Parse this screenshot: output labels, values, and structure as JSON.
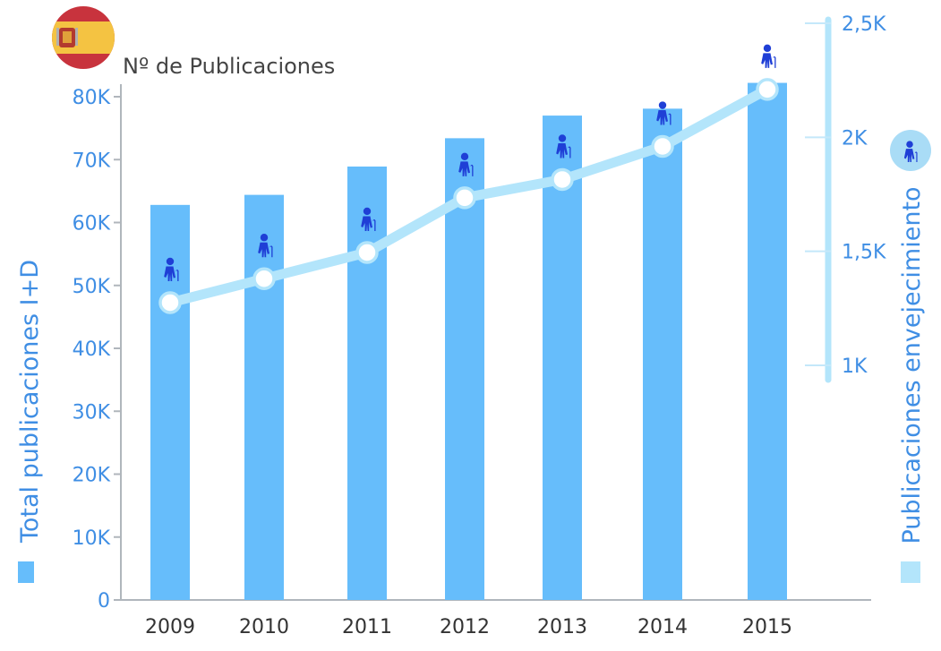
{
  "chart_data": {
    "type": "bar",
    "title": "Nº de Publicaciones",
    "categories": [
      "2009",
      "2010",
      "2011",
      "2012",
      "2013",
      "2014",
      "2015"
    ],
    "series": [
      {
        "name": "Total publicaciones I+D",
        "type": "bar",
        "axis": "left",
        "color": "#66bdfb",
        "values": [
          62800,
          64400,
          68900,
          73400,
          77000,
          78100,
          82200
        ]
      },
      {
        "name": "Publicaciones envejecimiento",
        "type": "line",
        "axis": "right",
        "color": "#b3e5fb",
        "values": [
          1275,
          1380,
          1495,
          1735,
          1815,
          1960,
          2210
        ]
      }
    ],
    "ylabel": "Total publicaciones I+D",
    "y2label": "Publicaciones envejecimiento",
    "ylim": [
      0,
      80000
    ],
    "y_ticks": [
      0,
      10000,
      20000,
      30000,
      40000,
      50000,
      60000,
      70000,
      80000
    ],
    "y_tick_labels": [
      "0",
      "10K",
      "20K",
      "30K",
      "40K",
      "50K",
      "60K",
      "70K",
      "80K"
    ],
    "y2lim": [
      1000,
      2500
    ],
    "y2_ticks": [
      1000,
      1500,
      2000,
      2500
    ],
    "y2_tick_labels": [
      "1K",
      "1,5K",
      "2K",
      "2,5K"
    ],
    "bar_icon": "elderly-person-icon",
    "legend_icon": "elderly-person-icon",
    "flag_icon": "spain-flag-icon",
    "colors": {
      "tick_text": "#3f8ee4",
      "axis": "#b0b6bc",
      "icon": "#1f3fd6"
    }
  }
}
